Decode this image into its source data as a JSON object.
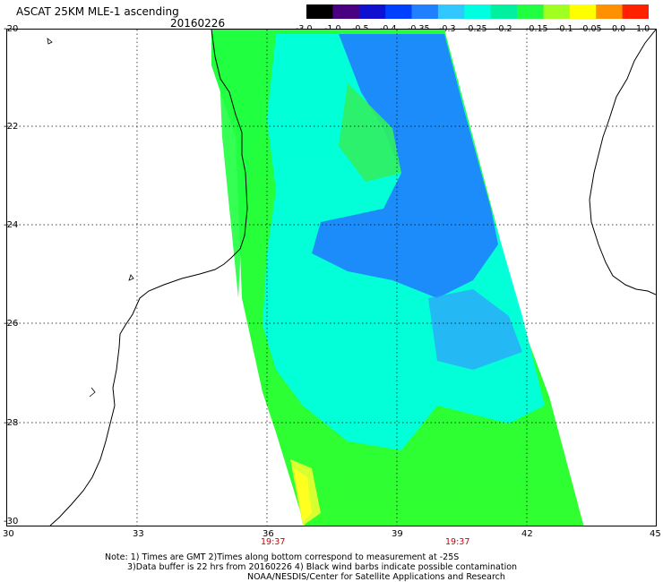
{
  "header": {
    "title": "ASCAT 25KM MLE-1 ascending",
    "date": "20160226"
  },
  "colorbar": {
    "labels": [
      "-3.0",
      "-1.0",
      "-0.5",
      "-0.4",
      "-0.35",
      "-0.3",
      "-0.25",
      "-0.2",
      "-0.15",
      "-0.1",
      "-0.05",
      "0.0",
      "1.0"
    ],
    "colors": [
      "#000000",
      "#4b0082",
      "#1010d0",
      "#0040ff",
      "#2080ff",
      "#30c8ff",
      "#00ffe0",
      "#00f0a0",
      "#20ff40",
      "#a0ff20",
      "#ffff00",
      "#ff9000",
      "#ff2000"
    ]
  },
  "axes": {
    "lat_labels": [
      "-20",
      "-22",
      "-24",
      "-26",
      "-28",
      "-30"
    ],
    "lon_labels": [
      "30",
      "33",
      "36",
      "39",
      "42",
      "45"
    ],
    "time_labels": [
      "19:37",
      "19:37"
    ]
  },
  "notes": {
    "line1": "Note: 1) Times are GMT 2)Times along bottom correspond to measurement at -25S",
    "line2": "3)Data buffer is 22 hrs from 20160226 4) Black wind barbs indicate possible contamination",
    "line3": "NOAA/NESDIS/Center for Satellite Applications and Research"
  },
  "map_colors": {
    "swath_green": "#20ff40",
    "swath_cyan": "#00ffe0",
    "swath_blue": "#1060ff",
    "coast": "#000000"
  }
}
